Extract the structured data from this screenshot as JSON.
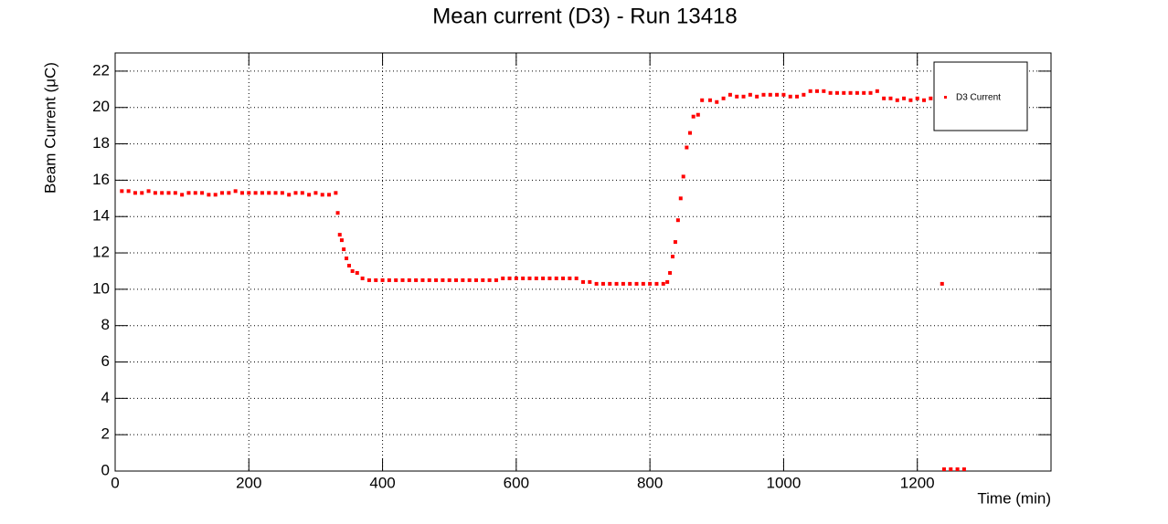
{
  "chart_data": {
    "type": "scatter",
    "title": "Mean current (D3) - Run 13418",
    "x_label": "Time (min)",
    "y_label": "Beam Current (μC)",
    "xlim": [
      0,
      1400
    ],
    "ylim": [
      0,
      23
    ],
    "xticks": [
      0,
      200,
      400,
      600,
      800,
      1000,
      1200
    ],
    "yticks": [
      0,
      2,
      4,
      6,
      8,
      10,
      12,
      14,
      16,
      18,
      20,
      22
    ],
    "grid": true,
    "legend": "upper right",
    "x": [
      10,
      20,
      30,
      40,
      50,
      60,
      70,
      80,
      90,
      100,
      110,
      120,
      130,
      140,
      150,
      160,
      170,
      180,
      190,
      200,
      210,
      220,
      230,
      240,
      250,
      260,
      270,
      280,
      290,
      300,
      310,
      320,
      330,
      333,
      336,
      339,
      342,
      346,
      350,
      355,
      362,
      370,
      380,
      390,
      400,
      410,
      420,
      430,
      440,
      450,
      460,
      470,
      480,
      490,
      500,
      510,
      520,
      530,
      540,
      550,
      560,
      570,
      580,
      590,
      600,
      610,
      620,
      630,
      640,
      650,
      660,
      670,
      680,
      690,
      700,
      710,
      720,
      730,
      740,
      750,
      760,
      770,
      780,
      790,
      800,
      810,
      820,
      826,
      830,
      834,
      838,
      842,
      846,
      850,
      855,
      860,
      865,
      872,
      878,
      890,
      900,
      910,
      920,
      930,
      940,
      950,
      960,
      970,
      980,
      990,
      1000,
      1010,
      1020,
      1030,
      1040,
      1050,
      1060,
      1070,
      1080,
      1090,
      1100,
      1110,
      1120,
      1130,
      1140,
      1150,
      1160,
      1170,
      1180,
      1190,
      1200,
      1210,
      1220,
      1230,
      1237,
      1240,
      1250,
      1260,
      1270
    ],
    "series": [
      {
        "name": "D3 Current",
        "color": "#ff0000",
        "values": [
          15.4,
          15.4,
          15.3,
          15.3,
          15.4,
          15.3,
          15.3,
          15.3,
          15.3,
          15.2,
          15.3,
          15.3,
          15.3,
          15.2,
          15.2,
          15.3,
          15.3,
          15.4,
          15.3,
          15.3,
          15.3,
          15.3,
          15.3,
          15.3,
          15.3,
          15.2,
          15.3,
          15.3,
          15.2,
          15.3,
          15.2,
          15.2,
          15.3,
          14.2,
          13.0,
          12.7,
          12.2,
          11.7,
          11.3,
          11.0,
          10.9,
          10.6,
          10.5,
          10.5,
          10.5,
          10.5,
          10.5,
          10.5,
          10.5,
          10.5,
          10.5,
          10.5,
          10.5,
          10.5,
          10.5,
          10.5,
          10.5,
          10.5,
          10.5,
          10.5,
          10.5,
          10.5,
          10.6,
          10.6,
          10.6,
          10.6,
          10.6,
          10.6,
          10.6,
          10.6,
          10.6,
          10.6,
          10.6,
          10.6,
          10.4,
          10.4,
          10.3,
          10.3,
          10.3,
          10.3,
          10.3,
          10.3,
          10.3,
          10.3,
          10.3,
          10.3,
          10.3,
          10.4,
          10.9,
          11.8,
          12.6,
          13.8,
          15.0,
          16.2,
          17.8,
          18.6,
          19.5,
          19.6,
          20.4,
          20.4,
          20.3,
          20.5,
          20.7,
          20.6,
          20.6,
          20.7,
          20.6,
          20.7,
          20.7,
          20.7,
          20.7,
          20.6,
          20.6,
          20.7,
          20.9,
          20.9,
          20.9,
          20.8,
          20.8,
          20.8,
          20.8,
          20.8,
          20.8,
          20.8,
          20.9,
          20.5,
          20.5,
          20.4,
          20.5,
          20.4,
          20.5,
          20.4,
          20.5,
          20.5,
          10.3,
          0.1,
          0.1,
          0.1,
          0.1
        ]
      }
    ]
  }
}
